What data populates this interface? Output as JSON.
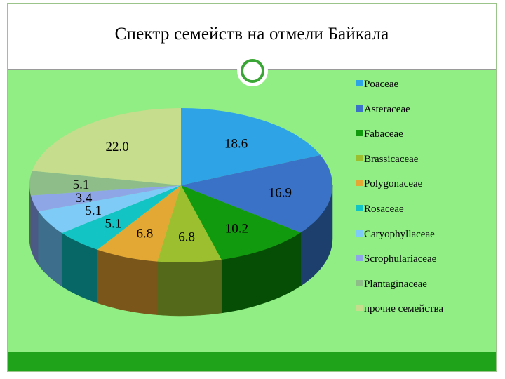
{
  "slide": {
    "title": "Спектр семейств на отмели Байкала"
  },
  "colors": {
    "background": "#90ee85",
    "bottom_bar": "#1ea31a",
    "accent_ring": "#3aa635"
  },
  "chart_data": {
    "type": "pie",
    "title": "Спектр семейств на отмели Байкала",
    "legend_position": "right",
    "labels": [
      "Poaceae",
      "Asteraceae",
      "Fabaceae",
      "Brassicaceae",
      "Polygonaceae",
      "Rosaceae",
      "Caryophyllaceae",
      "Scrophulariaceae",
      "Plantaginaceae",
      "прочие семейства"
    ],
    "values": [
      18.6,
      16.9,
      10.2,
      6.8,
      6.8,
      5.1,
      5.1,
      3.4,
      5.1,
      22.0
    ],
    "data_labels": [
      "18.6",
      "16.9",
      "10.2",
      "6.8",
      "6.8",
      "5.1",
      "5.1",
      "3.4",
      "5.1",
      "22.0"
    ],
    "colors": [
      "#2ea3e6",
      "#3a72c8",
      "#119a0e",
      "#9bbf2e",
      "#e3a833",
      "#12c4c4",
      "#7ecbf8",
      "#8ea6e6",
      "#8fbd8a",
      "#c5dd8c"
    ],
    "side_colors": [
      "#17628c",
      "#1d3f6e",
      "#064d05",
      "#55691a",
      "#7a561a",
      "#076666",
      "#3d6f8c",
      "#4b5a84",
      "#4f6a4c",
      "#6e7a4e"
    ]
  }
}
